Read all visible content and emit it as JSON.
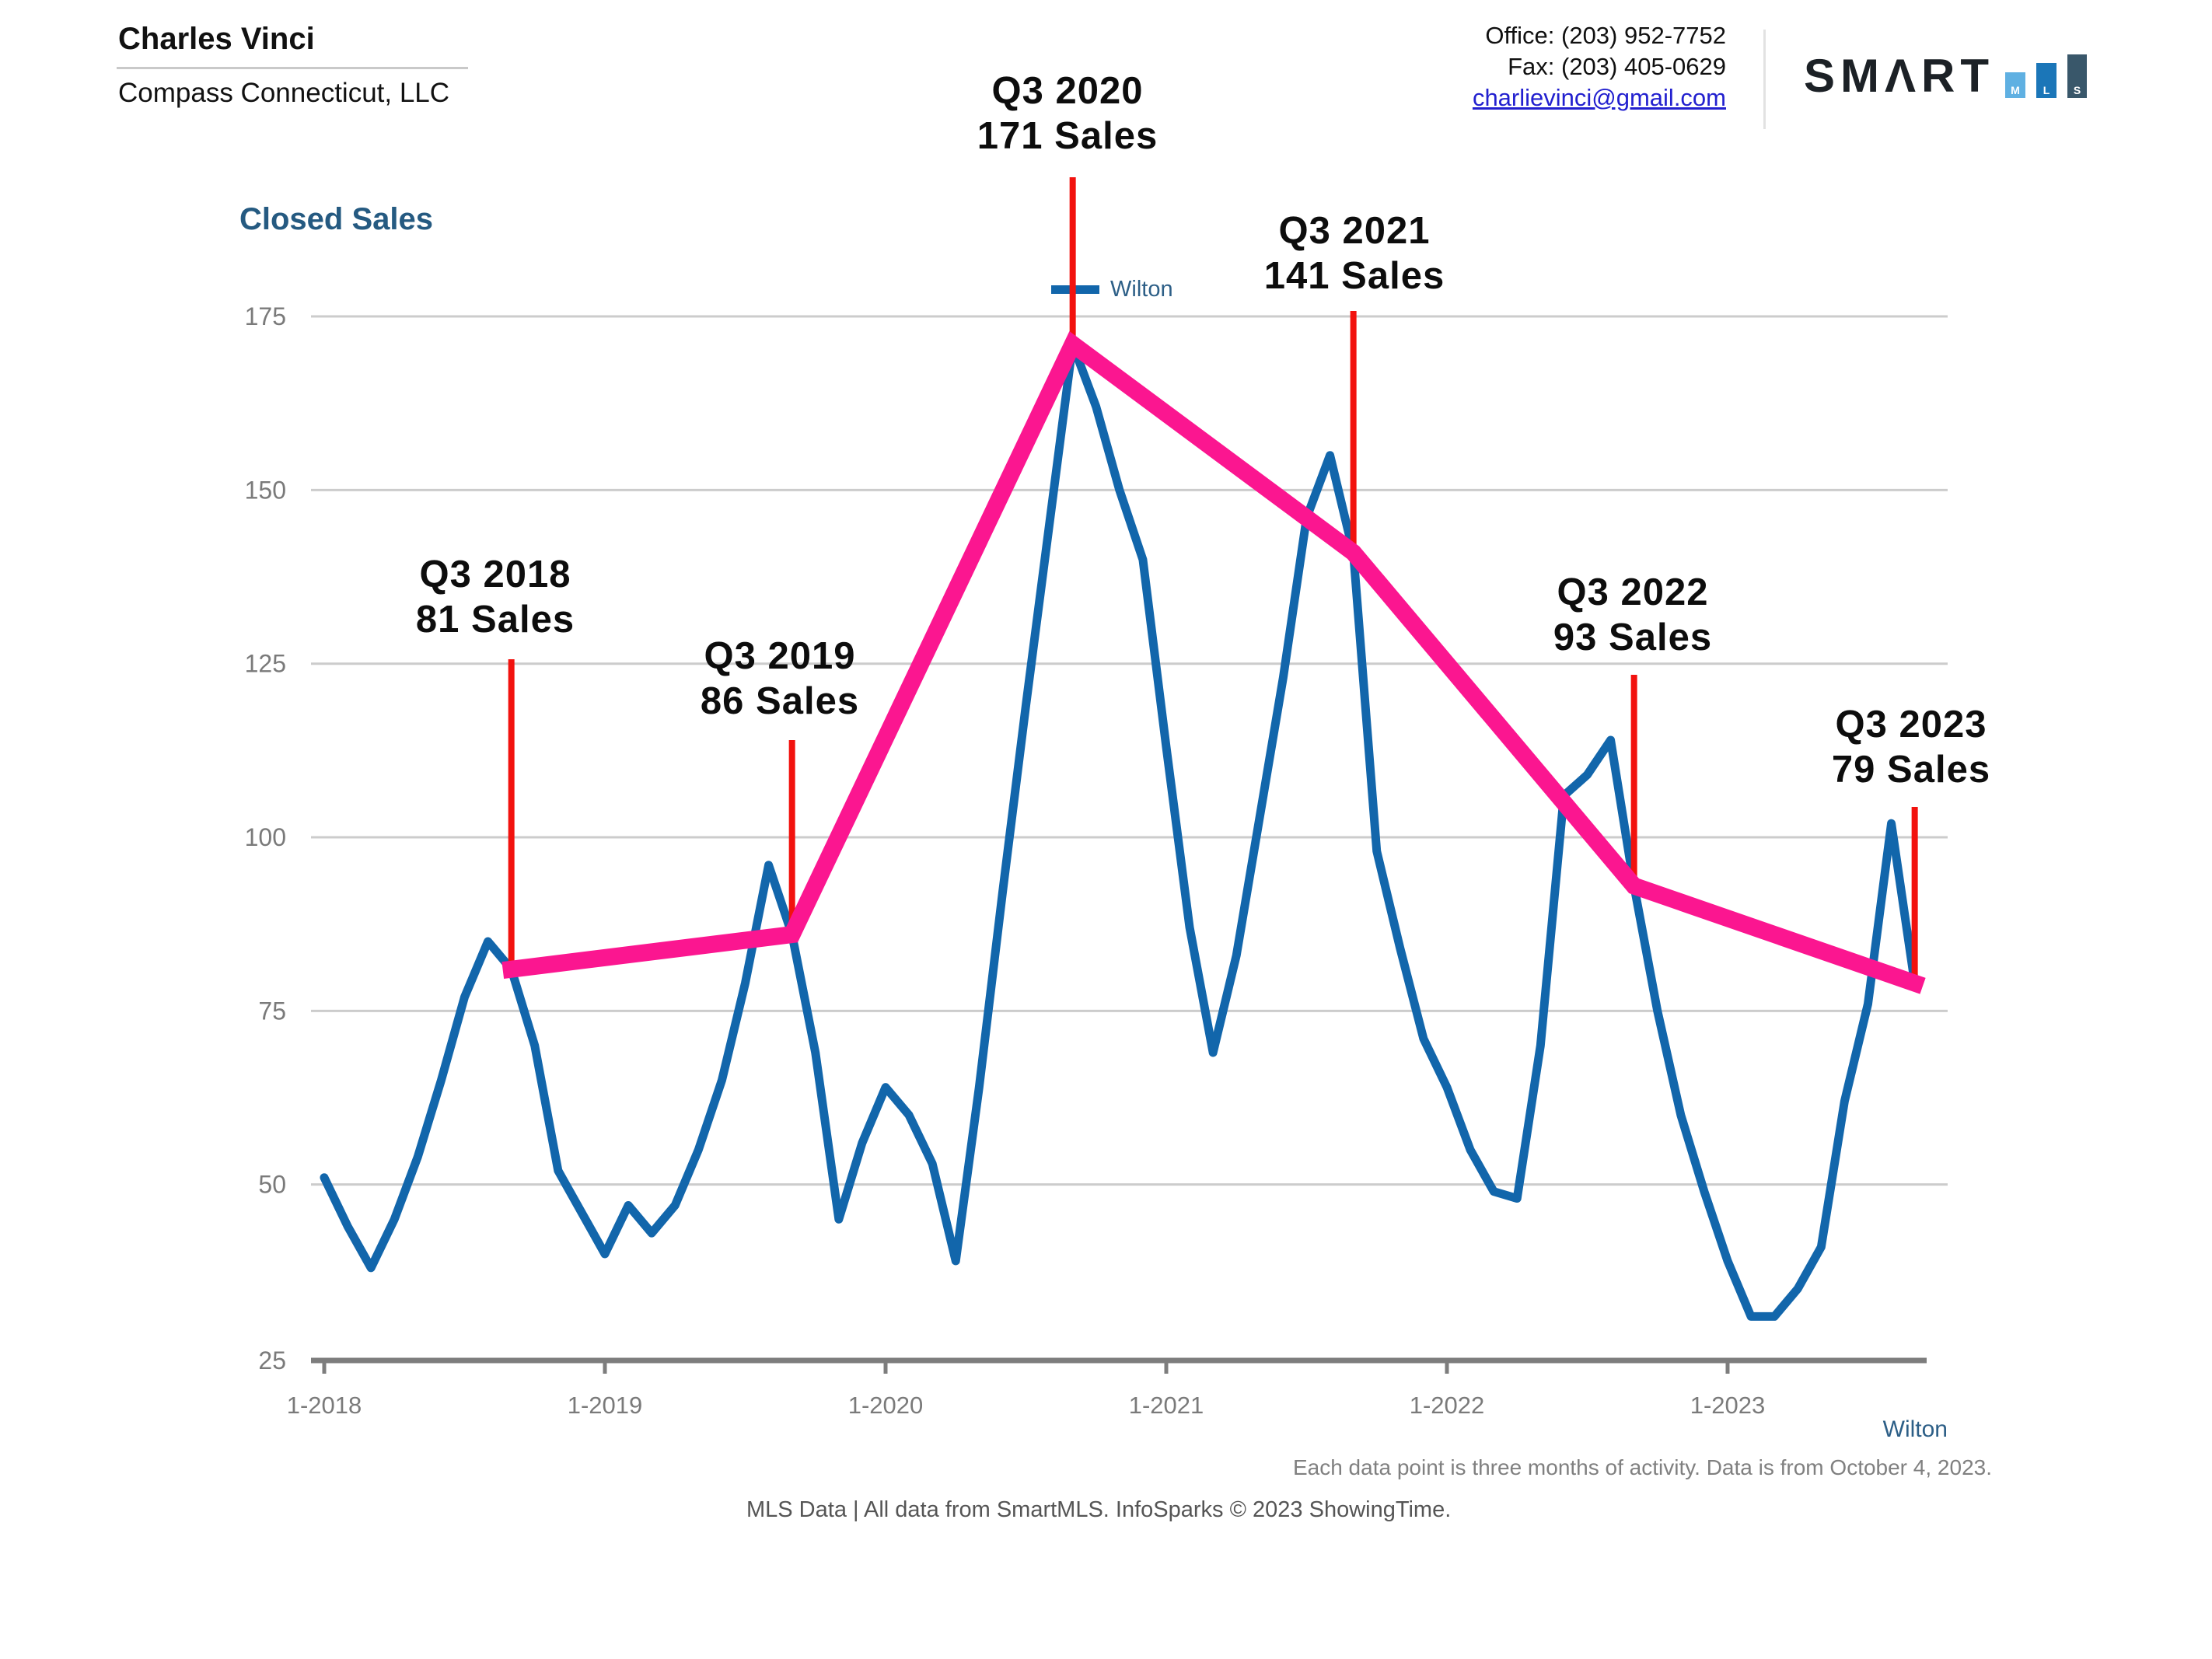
{
  "header": {
    "name": "Charles Vinci",
    "company": "Compass Connecticut, LLC"
  },
  "contact": {
    "office": "Office: (203) 952-7752",
    "fax": "Fax: (203) 405-0629",
    "email": "charlievinci@gmail.com"
  },
  "logo": {
    "word": "SMΛRT",
    "bars": [
      {
        "letter": "M",
        "color": "#5fb0e2",
        "height": 33,
        "width": 26
      },
      {
        "letter": "L",
        "color": "#1b76b8",
        "height": 45,
        "width": 26
      },
      {
        "letter": "S",
        "color": "#39576a",
        "height": 56,
        "width": 25
      }
    ]
  },
  "footnotes": {
    "right": "Each data point is three months of activity. Data is from October 4, 2023.",
    "left": "MLS Data | All data from SmartMLS. InfoSparks © 2023 ShowingTime."
  },
  "colors": {
    "line_blue": "#1266ab",
    "trend_pink": "#fb1690",
    "callout_red": "#f2120e",
    "grid": "#cccccc",
    "axis": "#7d7d7d",
    "tick_label": "#7a7a7a",
    "title": "#255a81",
    "legend_text": "#2d5f87",
    "link": "#2220cf",
    "annotation_text": "#0d0d0d"
  },
  "chart_data": {
    "type": "line",
    "title": "Closed Sales",
    "x_start": "2018-01",
    "x_end": "2023-09",
    "frequency": "monthly",
    "note": "Each data point is three months of activity.",
    "ylim": [
      25,
      175
    ],
    "y_ticks": [
      25,
      50,
      75,
      100,
      125,
      150,
      175
    ],
    "x_ticks": [
      "1-2018",
      "1-2019",
      "1-2020",
      "1-2021",
      "1-2022",
      "1-2023"
    ],
    "grid": "horizontal",
    "legend_position": "top-center",
    "series": [
      {
        "name": "Wilton",
        "color": "#1266ab",
        "values": [
          51,
          44,
          38,
          45,
          54,
          65,
          77,
          85,
          81,
          70,
          52,
          46,
          40,
          47,
          43,
          47,
          55,
          65,
          79,
          96,
          86,
          69,
          45,
          56,
          64,
          60,
          53,
          39,
          64,
          92,
          119,
          145,
          171,
          162,
          150,
          140,
          113,
          87,
          69,
          83,
          103,
          123,
          146,
          155,
          141,
          98,
          84,
          71,
          64,
          55,
          49,
          48,
          70,
          106,
          109,
          114,
          93,
          75,
          60,
          49,
          39,
          31,
          31,
          35,
          41,
          62,
          76,
          102,
          79
        ]
      }
    ],
    "annotations": [
      {
        "label": "Q3 2018",
        "text": "81 Sales",
        "value": 81,
        "month": "2018-09"
      },
      {
        "label": "Q3 2019",
        "text": "86 Sales",
        "value": 86,
        "month": "2019-09"
      },
      {
        "label": "Q3 2020",
        "text": "171 Sales",
        "value": 171,
        "month": "2020-09"
      },
      {
        "label": "Q3 2021",
        "text": "141 Sales",
        "value": 141,
        "month": "2021-09"
      },
      {
        "label": "Q3 2022",
        "text": "93 Sales",
        "value": 93,
        "month": "2022-09"
      },
      {
        "label": "Q3 2023",
        "text": "79 Sales",
        "value": 79,
        "month": "2023-09"
      }
    ],
    "trend_line": {
      "color": "#fb1690",
      "connects": "Q3 annotation points"
    }
  }
}
